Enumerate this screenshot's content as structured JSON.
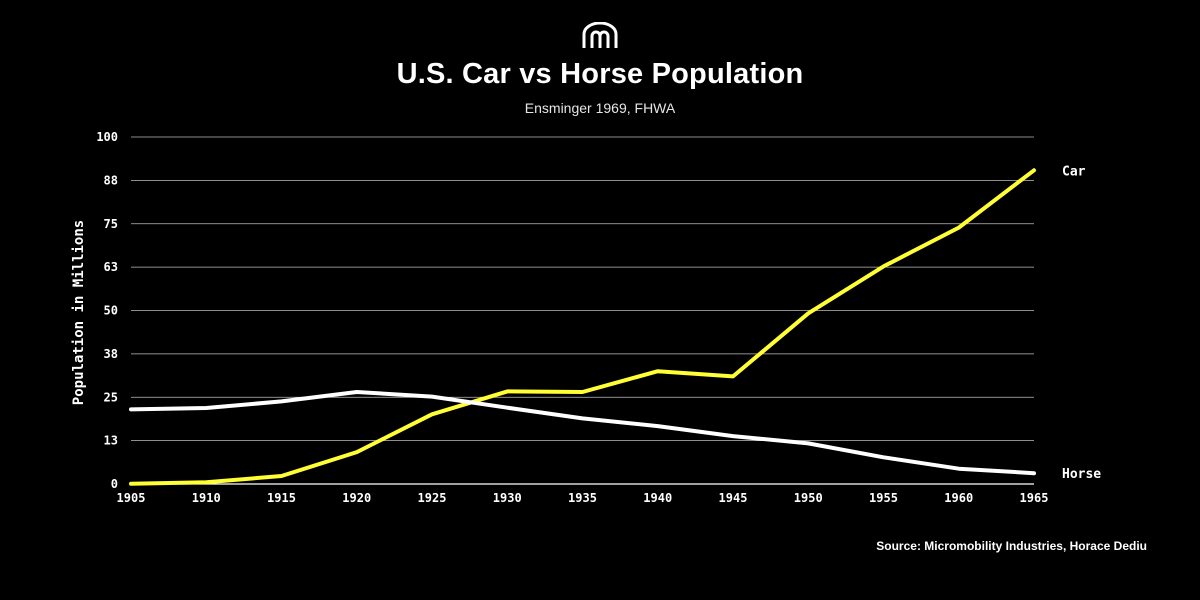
{
  "header": {
    "logo": "micromobility-logo",
    "title": "U.S. Car vs Horse Population",
    "subtitle": "Ensminger 1969, FHWA"
  },
  "footer": {
    "source": "Source: Micromobility Industries, Horace Dediu"
  },
  "colors": {
    "background": "#000000",
    "car": "#ffff33",
    "horse": "#ffffff",
    "grid": "#bdbdbd"
  },
  "chart_data": {
    "type": "line",
    "title": "U.S. Car vs Horse Population",
    "subtitle": "Ensminger 1969, FHWA",
    "xlabel": "",
    "ylabel": "Population in Millions",
    "x": [
      1905,
      1910,
      1915,
      1920,
      1925,
      1930,
      1935,
      1940,
      1945,
      1950,
      1955,
      1960,
      1965
    ],
    "xlim": [
      1905,
      1965
    ],
    "ylim": [
      0,
      100
    ],
    "y_ticks": [
      0,
      12.5,
      25,
      37.5,
      50,
      62.5,
      75,
      87.5,
      100
    ],
    "y_tick_labels": [
      "0",
      "13",
      "25",
      "38",
      "50",
      "63",
      "75",
      "88",
      "100"
    ],
    "grid": true,
    "legend": "end-of-line labels",
    "series": [
      {
        "name": "Car",
        "color": "#ffff33",
        "values": [
          0.1,
          0.5,
          2.3,
          9.2,
          20.1,
          26.7,
          26.5,
          32.5,
          31.0,
          49.2,
          62.7,
          73.9,
          90.4
        ]
      },
      {
        "name": "Horse",
        "color": "#ffffff",
        "values": [
          21.5,
          21.9,
          23.8,
          26.5,
          25.2,
          22.0,
          18.9,
          16.7,
          13.8,
          11.7,
          7.7,
          4.4,
          3.1
        ]
      }
    ]
  }
}
